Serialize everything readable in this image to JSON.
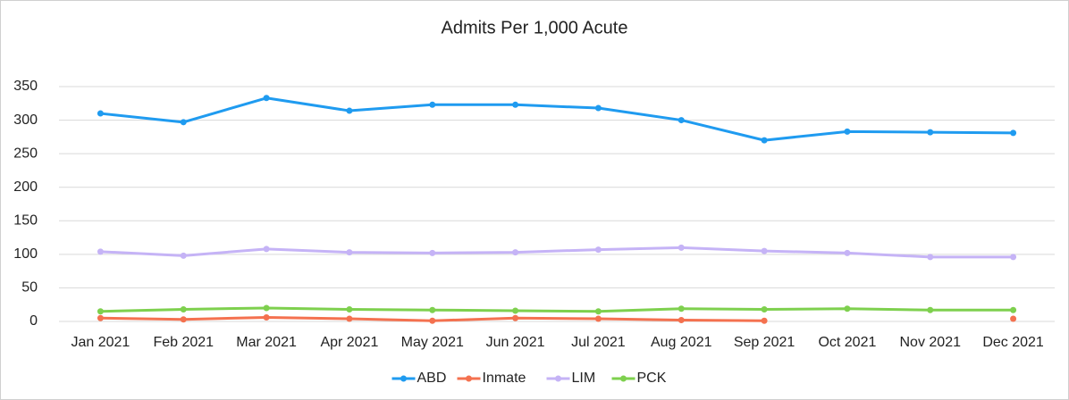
{
  "chart_data": {
    "type": "line",
    "title": "Admits Per 1,000 Acute",
    "categories": [
      "Jan 2021",
      "Feb 2021",
      "Mar 2021",
      "Apr 2021",
      "May 2021",
      "Jun 2021",
      "Jul 2021",
      "Aug 2021",
      "Sep 2021",
      "Oct 2021",
      "Nov 2021",
      "Dec 2021"
    ],
    "series": [
      {
        "name": "ABD",
        "color": "#1f9bf0",
        "values": [
          310,
          297,
          333,
          314,
          323,
          323,
          318,
          300,
          270,
          283,
          282,
          281
        ]
      },
      {
        "name": "Inmate",
        "color": "#f4714f",
        "values": [
          5,
          3,
          6,
          4,
          1,
          5,
          4,
          2,
          1,
          null,
          null,
          4
        ]
      },
      {
        "name": "LIM",
        "color": "#c5b3f6",
        "values": [
          104,
          98,
          108,
          103,
          102,
          103,
          107,
          110,
          105,
          102,
          96,
          96
        ]
      },
      {
        "name": "PCK",
        "color": "#7ed04e",
        "values": [
          15,
          18,
          20,
          18,
          17,
          16,
          15,
          19,
          18,
          19,
          17,
          17
        ]
      }
    ],
    "ylim": [
      0,
      350
    ],
    "yticks": [
      0,
      50,
      100,
      150,
      200,
      250,
      300,
      350
    ],
    "grid": true,
    "legend": "bottom"
  }
}
